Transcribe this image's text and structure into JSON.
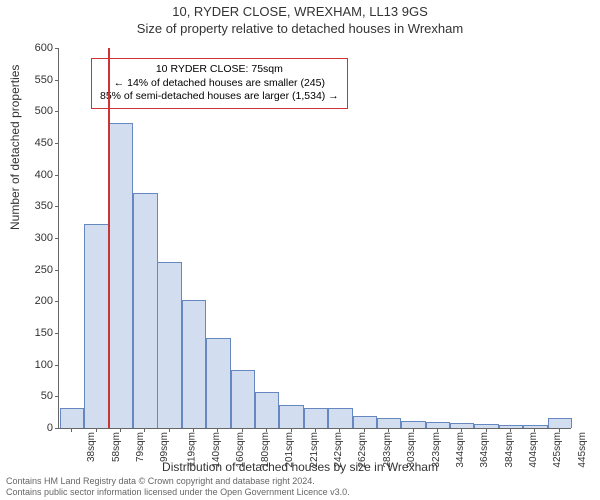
{
  "header": {
    "line1": "10, RYDER CLOSE, WREXHAM, LL13 9GS",
    "line2": "Size of property relative to detached houses in Wrexham"
  },
  "ylabel": "Number of detached properties",
  "xlabel": "Distribution of detached houses by size in Wrexham",
  "chart": {
    "type": "histogram",
    "ylim": [
      0,
      600
    ],
    "ytick_step": 50,
    "bar_fill": "#d2deef",
    "bar_stroke": "#6688c0",
    "background_color": "#ffffff",
    "axis_color": "#666666",
    "categories": [
      "38sqm",
      "58sqm",
      "79sqm",
      "99sqm",
      "119sqm",
      "140sqm",
      "160sqm",
      "180sqm",
      "201sqm",
      "221sqm",
      "242sqm",
      "262sqm",
      "283sqm",
      "303sqm",
      "323sqm",
      "344sqm",
      "364sqm",
      "384sqm",
      "404sqm",
      "425sqm",
      "445sqm"
    ],
    "values": [
      30,
      320,
      480,
      370,
      260,
      200,
      140,
      90,
      55,
      35,
      30,
      30,
      18,
      15,
      10,
      8,
      7,
      5,
      3,
      3,
      15
    ],
    "marker": {
      "position_category_index": 2,
      "color": "#cc3333"
    }
  },
  "annotation": {
    "border_color": "#cc3333",
    "line1": "10 RYDER CLOSE: 75sqm",
    "line2": "← 14% of detached houses are smaller (245)",
    "line3": "85% of semi-detached houses are larger (1,534) →"
  },
  "footer": {
    "line1": "Contains HM Land Registry data © Crown copyright and database right 2024.",
    "line2": "Contains public sector information licensed under the Open Government Licence v3.0."
  }
}
